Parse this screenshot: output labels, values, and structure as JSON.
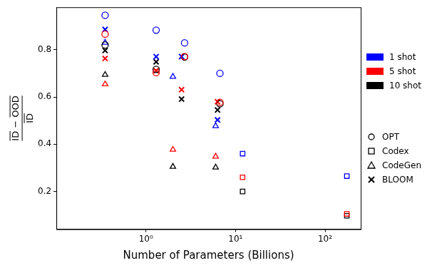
{
  "chart_data": {
    "type": "scatter",
    "x_label": "Number of Parameters (Billions)",
    "y_label": {
      "numerator": "ID − OOD",
      "denominator": "ID"
    },
    "log": "x",
    "grid": false,
    "xlim": [
      0.1,
      250
    ],
    "xticks": [
      {
        "value": 1,
        "label": "10⁰"
      },
      {
        "value": 10,
        "label": "10¹"
      },
      {
        "value": 100,
        "label": "10²"
      }
    ],
    "ylim": [
      0.04,
      0.98
    ],
    "yticks": [
      0.2,
      0.4,
      0.6,
      0.8
    ],
    "legend": "right",
    "shots": [
      {
        "name": "1 shot",
        "color": "#0000ff"
      },
      {
        "name": "5 shot",
        "color": "#ff0000"
      },
      {
        "name": "10 shot",
        "color": "#000000"
      }
    ],
    "series": [
      {
        "name": "OPT",
        "marker": "circle",
        "x": [
          0.35,
          1.3,
          2.7,
          6.7
        ],
        "values": {
          "1 shot": [
            0.946,
            0.883,
            0.829,
            0.7
          ],
          "5 shot": [
            0.866,
            0.703,
            0.771,
            0.577
          ],
          "10 shot": [
            0.82,
            0.717,
            0.769,
            0.571
          ]
        }
      },
      {
        "name": "Codex",
        "marker": "square",
        "x": [
          12,
          175
        ],
        "values": {
          "1 shot": [
            0.36,
            0.265
          ],
          "5 shot": [
            0.26,
            0.105
          ],
          "10 shot": [
            0.2,
            0.097
          ]
        }
      },
      {
        "name": "CodeGen",
        "marker": "triangle",
        "x": [
          0.35,
          2,
          6
        ],
        "values": {
          "1 shot": [
            0.83,
            0.686,
            0.477
          ],
          "5 shot": [
            0.654,
            0.377,
            0.348
          ],
          "10 shot": [
            0.694,
            0.305,
            0.302
          ]
        }
      },
      {
        "name": "BLOOM",
        "marker": "x",
        "x": [
          0.35,
          1.3,
          2.5,
          6.3
        ],
        "values": {
          "1 shot": [
            0.886,
            0.771,
            0.771,
            0.503
          ],
          "5 shot": [
            0.763,
            0.711,
            0.631,
            0.58
          ],
          "10 shot": [
            0.797,
            0.749,
            0.591,
            0.545
          ]
        }
      }
    ]
  }
}
